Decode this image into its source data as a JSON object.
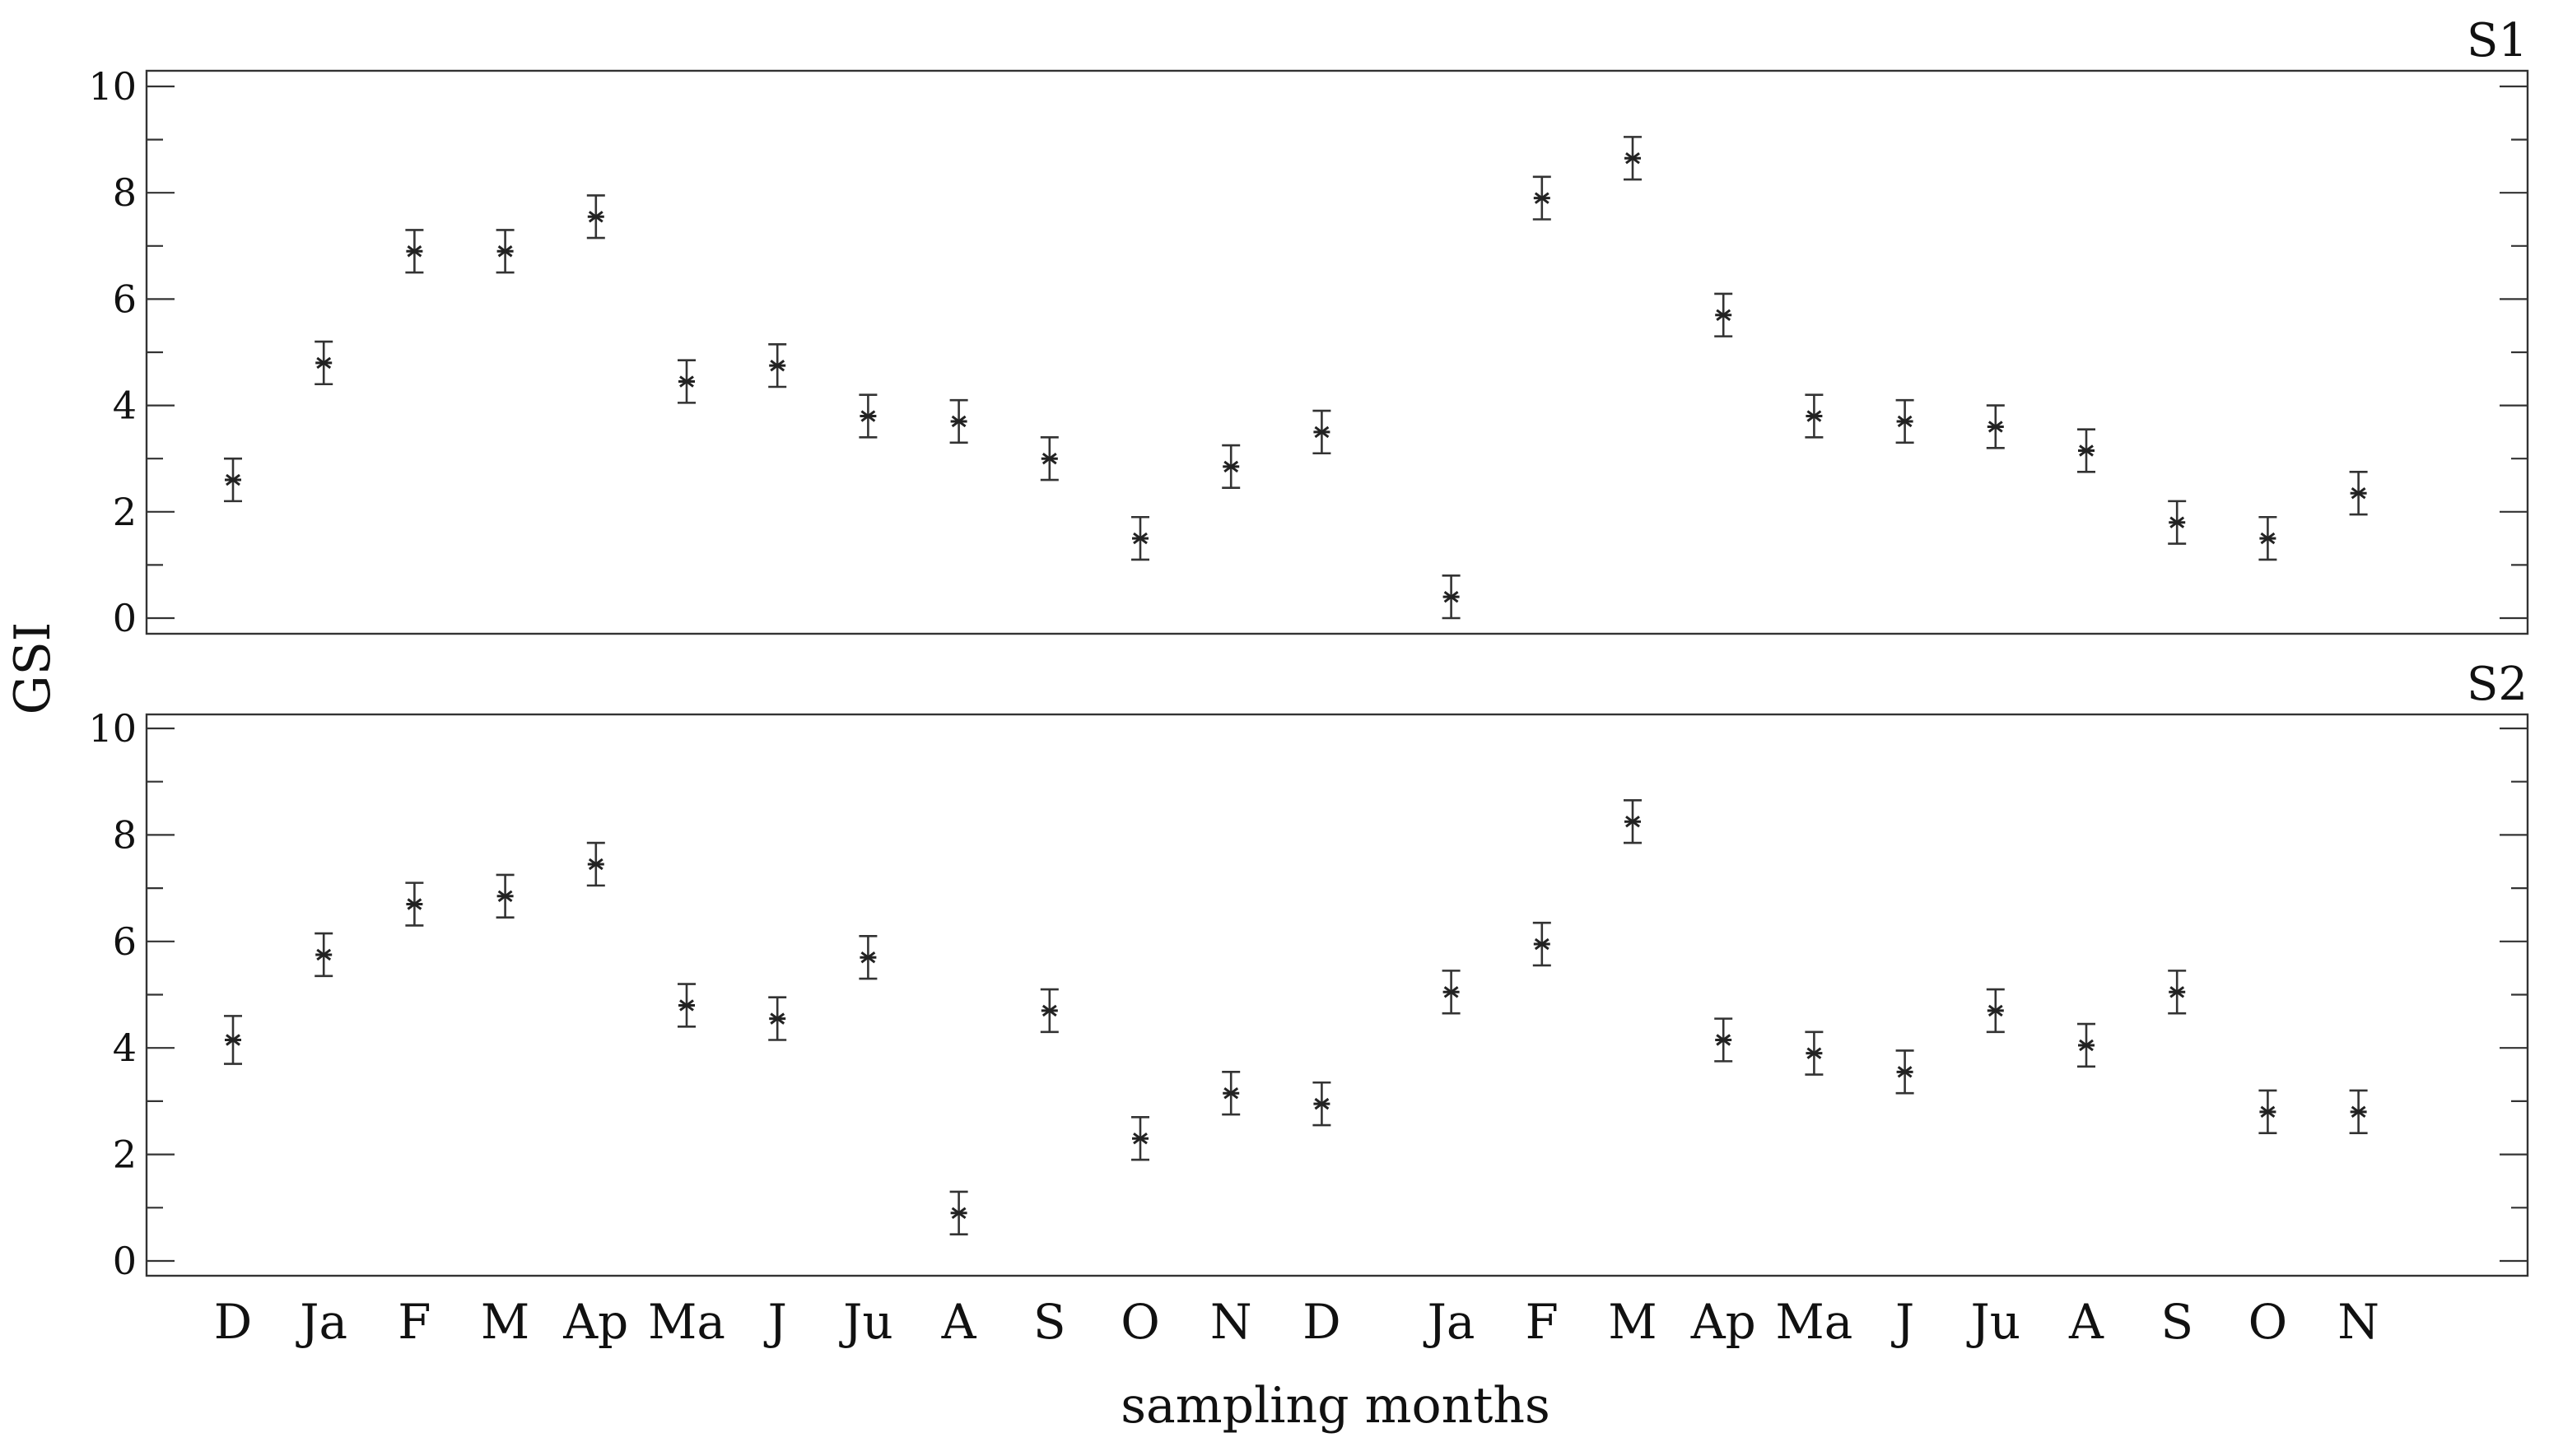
{
  "chart_data": {
    "type": "scatter",
    "ylabel": "GSI",
    "xlabel": "sampling months",
    "categories": [
      "D",
      "Ja",
      "F",
      "M",
      "Ap",
      "Ma",
      "J",
      "Ju",
      "A",
      "S",
      "O",
      "N",
      "D",
      "Ja",
      "F",
      "M",
      "Ap",
      "Ma",
      "J",
      "Ju",
      "A",
      "S",
      "O",
      "N"
    ],
    "ylim": [
      0,
      10
    ],
    "yticks": [
      0,
      2,
      4,
      6,
      8,
      10
    ],
    "error_bars": true,
    "grid": false,
    "panels": [
      {
        "label": "S1",
        "values": [
          2.6,
          4.8,
          6.9,
          6.9,
          7.55,
          4.45,
          4.75,
          3.8,
          3.7,
          3.0,
          1.5,
          2.85,
          3.5,
          0.4,
          7.9,
          8.65,
          5.7,
          3.8,
          3.7,
          3.6,
          3.15,
          1.8,
          1.5,
          2.35
        ],
        "errors": [
          0.4,
          0.4,
          0.4,
          0.4,
          0.4,
          0.4,
          0.4,
          0.4,
          0.4,
          0.4,
          0.4,
          0.4,
          0.4,
          0.4,
          0.4,
          0.4,
          0.4,
          0.4,
          0.4,
          0.4,
          0.4,
          0.4,
          0.4,
          0.4
        ]
      },
      {
        "label": "S2",
        "values": [
          4.15,
          5.75,
          6.7,
          6.85,
          7.45,
          4.8,
          4.55,
          5.7,
          0.9,
          4.7,
          2.3,
          3.15,
          2.95,
          5.05,
          5.95,
          8.25,
          4.15,
          3.9,
          3.55,
          4.7,
          4.05,
          5.05,
          2.8,
          2.8
        ],
        "errors": [
          0.45,
          0.4,
          0.4,
          0.4,
          0.4,
          0.4,
          0.4,
          0.4,
          0.4,
          0.4,
          0.4,
          0.4,
          0.4,
          0.4,
          0.4,
          0.4,
          0.4,
          0.4,
          0.4,
          0.4,
          0.4,
          0.4,
          0.4,
          0.4
        ]
      }
    ]
  }
}
